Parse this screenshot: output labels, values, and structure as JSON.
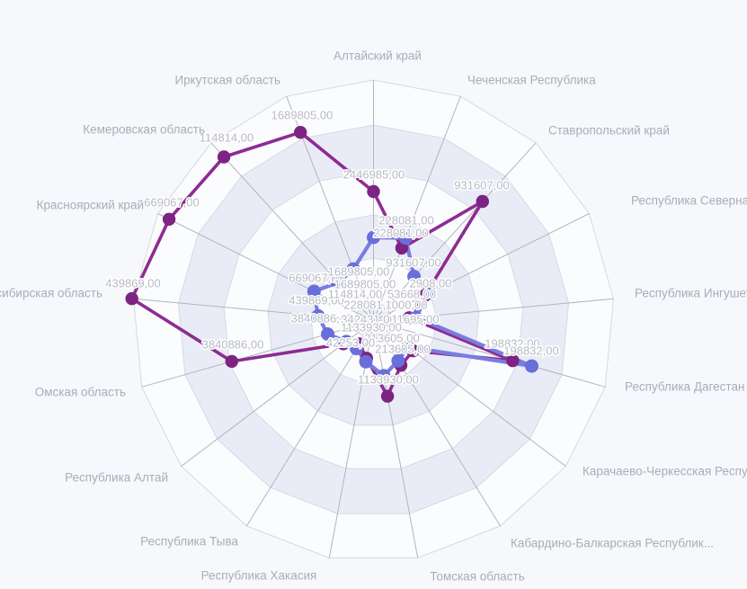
{
  "chart_data": {
    "type": "radar",
    "title": "",
    "legend": "none",
    "center": [
      415.5,
      357
    ],
    "outer_radius": 268,
    "rings": [
      1.0,
      0.813,
      0.623,
      0.44,
      0.261,
      0.078
    ],
    "ring_fills": [
      "#fbfcfe",
      "#e9ecf6",
      "#fbfcfe",
      "#e9ecf6",
      "#fbfcfe",
      "#e9ecf6"
    ],
    "ring_stroke": "#d6d9e3",
    "spoke_color": "#b4b4bc",
    "axes": [
      {
        "label": "Алтайский край",
        "anchor": "middle",
        "lx": 420,
        "ly": 62
      },
      {
        "label": "Чеченская Республика",
        "anchor": "start",
        "lx": 520,
        "ly": 89
      },
      {
        "label": "Ставропольский край",
        "anchor": "start",
        "lx": 610,
        "ly": 145
      },
      {
        "label": "Республика Северная Осетия — Алания",
        "anchor": "start",
        "lx": 702,
        "ly": 223
      },
      {
        "label": "Республика Ингушетия",
        "anchor": "start",
        "lx": 706,
        "ly": 326
      },
      {
        "label": "Республика Дагестан",
        "anchor": "start",
        "lx": 695,
        "ly": 430
      },
      {
        "label": "Карачаево-Черкесская Республика",
        "anchor": "start",
        "lx": 648,
        "ly": 524
      },
      {
        "label": "Кабардино-Балкарская Республик...",
        "anchor": "start",
        "lx": 568,
        "ly": 604
      },
      {
        "label": "Томская область",
        "anchor": "middle",
        "lx": 531,
        "ly": 641
      },
      {
        "label": "Республика Хакасия",
        "anchor": "middle",
        "lx": 288,
        "ly": 640
      },
      {
        "label": "Республика Тыва",
        "anchor": "end",
        "lx": 265,
        "ly": 602
      },
      {
        "label": "Республика Алтай",
        "anchor": "end",
        "lx": 187,
        "ly": 531
      },
      {
        "label": "Омская область",
        "anchor": "end",
        "lx": 140,
        "ly": 436
      },
      {
        "label": "Новосибирская область",
        "anchor": "end",
        "lx": 114,
        "ly": 326
      },
      {
        "label": "Красноярский край",
        "anchor": "end",
        "lx": 160,
        "ly": 228
      },
      {
        "label": "Кемеровская область",
        "anchor": "end",
        "lx": 228,
        "ly": 144
      },
      {
        "label": "Иркутская область",
        "anchor": "end",
        "lx": 312,
        "ly": 89
      }
    ],
    "series": [
      {
        "name": "series-magenta",
        "line_color": "#8f2b92",
        "dot_color": "#7d2383",
        "line_width": 3.6,
        "dot_radius": 7.2,
        "values": [
          "2446985,00",
          "228081,00",
          "931607,00",
          "2908,00",
          "11695,00",
          "198832,00",
          "213605,00",
          "342431,00",
          "1133930,00",
          "53668,00",
          "42253,00",
          "1000,00",
          "3840886,00",
          "439869,00",
          "669067,00",
          "114814,00",
          "1689805,00"
        ],
        "radii": [
          144,
          87,
          180,
          64,
          40,
          161,
          55,
          58,
          85,
          42,
          30,
          42,
          164,
          270,
          254,
          247,
          225
        ]
      },
      {
        "name": "series-blue",
        "line_color": "#797ce2",
        "dot_color": "#6a6ed8",
        "line_width": 4.2,
        "dot_radius": 7.5,
        "values": [
          "2446985,00",
          "228081,00",
          "931607,00",
          "2908,00",
          "11695,00",
          "198832,00",
          "213605,00",
          "342431,00",
          "1133930,00",
          "53668,00",
          "42253,00",
          "1000,00",
          "3840886,00",
          "439869,00",
          "669067,00",
          "114814,00",
          "1689805,00"
        ],
        "radii": [
          93,
          99,
          67,
          70,
          47,
          183,
          48,
          52,
          62,
          46,
          36,
          38,
          53,
          62,
          74,
          58,
          62
        ]
      }
    ],
    "value_labels": [
      {
        "text": "1689805,00",
        "x": 336,
        "y": 128
      },
      {
        "text": "114814,00",
        "x": 252,
        "y": 153
      },
      {
        "text": "669067,00",
        "x": 191,
        "y": 225
      },
      {
        "text": "439869,00",
        "x": 148,
        "y": 315
      },
      {
        "text": "3840886,00",
        "x": 259,
        "y": 383
      },
      {
        "text": "2446985,00",
        "x": 416,
        "y": 194
      },
      {
        "text": "931607,00",
        "x": 536,
        "y": 206
      },
      {
        "text": "228081,00",
        "x": 452,
        "y": 245
      },
      {
        "text": "228081,00",
        "x": 446,
        "y": 259
      },
      {
        "text": "198832,00",
        "x": 570,
        "y": 382
      },
      {
        "text": "198832,00",
        "x": 591,
        "y": 390
      },
      {
        "text": "1133930,00",
        "x": 432,
        "y": 422
      },
      {
        "text": "931607,00",
        "x": 460,
        "y": 292
      },
      {
        "text": "669067,00",
        "x": 352,
        "y": 309
      },
      {
        "text": "1689805,00",
        "x": 399,
        "y": 302
      },
      {
        "text": "1689805,00",
        "x": 406,
        "y": 316
      },
      {
        "text": "2908,00",
        "x": 479,
        "y": 315
      },
      {
        "text": "439869,00",
        "x": 352,
        "y": 334
      },
      {
        "text": "114814,00",
        "x": 395,
        "y": 327
      },
      {
        "text": "53668,00",
        "x": 458,
        "y": 327
      },
      {
        "text": "228081,00",
        "x": 413,
        "y": 339
      },
      {
        "text": "1000,00",
        "x": 452,
        "y": 339
      },
      {
        "text": "3840886,00",
        "x": 358,
        "y": 354
      },
      {
        "text": "342431,00",
        "x": 410,
        "y": 355
      },
      {
        "text": "11695,00",
        "x": 462,
        "y": 355
      },
      {
        "text": "1133930,00",
        "x": 413,
        "y": 364
      },
      {
        "text": "213605,00",
        "x": 436,
        "y": 376
      },
      {
        "text": "42253,00",
        "x": 390,
        "y": 381
      },
      {
        "text": "213605,00",
        "x": 448,
        "y": 388
      }
    ],
    "background": "#f7f8fb",
    "axis_label_color": "#a9adba",
    "value_label_color": "#b7bac3"
  }
}
